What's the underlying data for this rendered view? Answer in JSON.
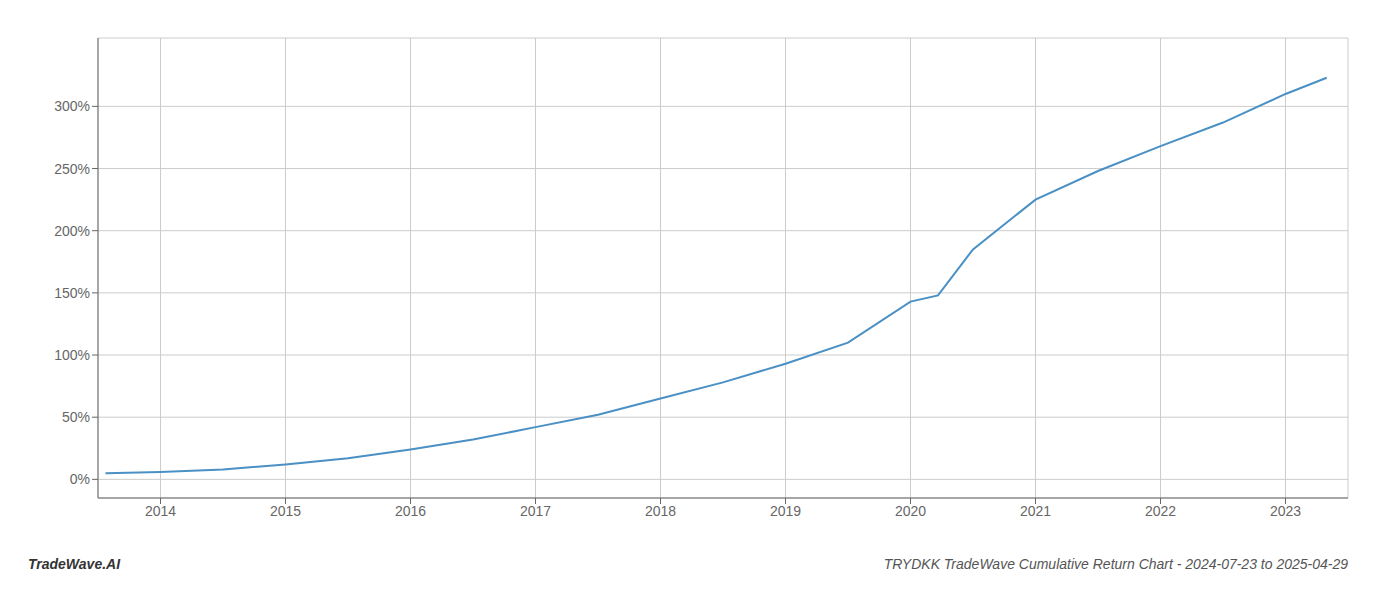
{
  "chart_data": {
    "type": "line",
    "title": "TRYDKK TradeWave Cumulative Return Chart - 2024-07-23 to 2025-04-29",
    "annotations": [
      "TradeWave.AI"
    ],
    "x": [
      2013.56,
      2014.0,
      2014.5,
      2015.0,
      2015.5,
      2016.0,
      2016.5,
      2017.0,
      2017.5,
      2018.0,
      2018.5,
      2019.0,
      2019.5,
      2020.0,
      2020.22,
      2020.5,
      2021.0,
      2021.5,
      2022.0,
      2022.5,
      2023.0,
      2023.33
    ],
    "values": [
      5,
      6,
      8,
      12,
      17,
      24,
      32,
      42,
      52,
      65,
      78,
      93,
      110,
      143,
      148,
      185,
      225,
      248,
      268,
      287,
      310,
      323
    ],
    "color": "#4a90c4",
    "xlim": [
      2013.5,
      2023.5
    ],
    "ylim": [
      -15,
      355
    ],
    "xticks": [
      2014,
      2015,
      2016,
      2017,
      2018,
      2019,
      2020,
      2021,
      2022,
      2023
    ],
    "yticks": [
      {
        "value": 0,
        "label": "0%"
      },
      {
        "value": 50,
        "label": "50%"
      },
      {
        "value": 100,
        "label": "100%"
      },
      {
        "value": 150,
        "label": "150%"
      },
      {
        "value": 200,
        "label": "200%"
      },
      {
        "value": 250,
        "label": "250%"
      },
      {
        "value": 300,
        "label": "300%"
      }
    ],
    "grid": true
  }
}
